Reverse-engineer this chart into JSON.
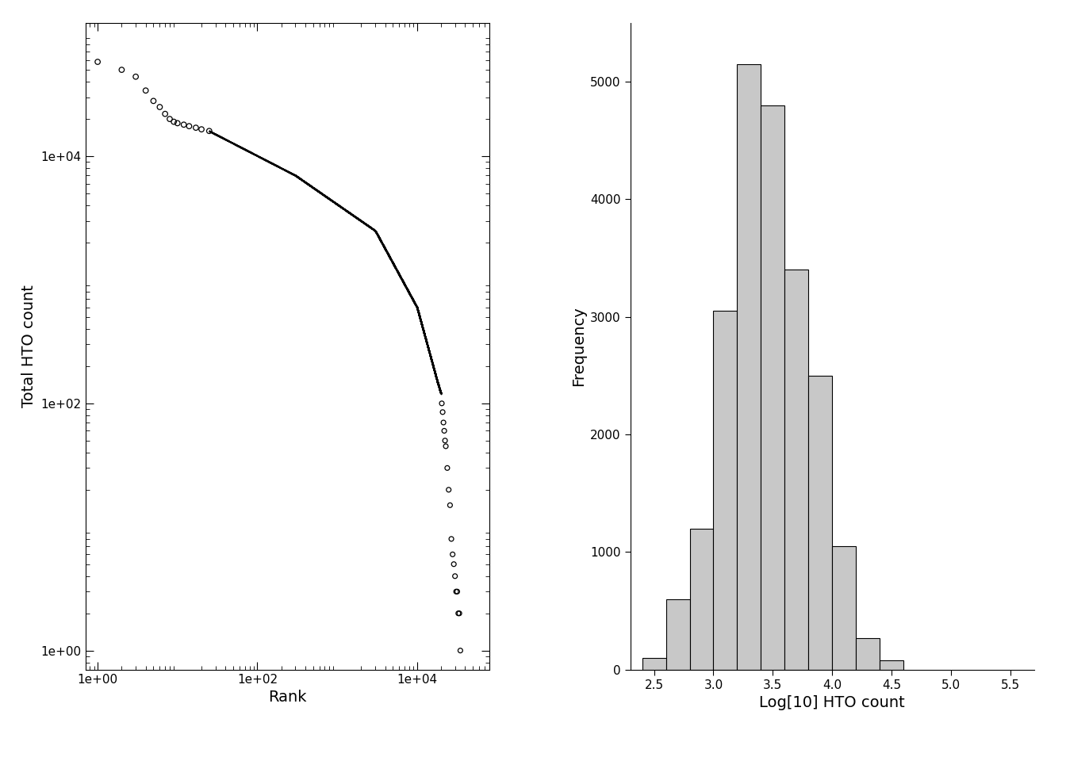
{
  "left_xlabel": "Rank",
  "left_ylabel": "Total HTO count",
  "right_xlabel": "Log[10] HTO count",
  "right_ylabel": "Frequency",
  "right_xlim": [
    2.3,
    5.7
  ],
  "right_ylim": [
    0,
    5500
  ],
  "right_yticks": [
    0,
    1000,
    2000,
    3000,
    4000,
    5000
  ],
  "right_xticks": [
    2.5,
    3.0,
    3.5,
    4.0,
    4.5,
    5.0,
    5.5
  ],
  "hist_bin_edges": [
    2.4,
    2.6,
    2.8,
    3.0,
    3.2,
    3.4,
    3.6,
    3.8,
    4.0,
    4.2,
    4.4,
    4.6
  ],
  "hist_counts": [
    100,
    600,
    1200,
    3050,
    5150,
    4800,
    3400,
    2500,
    1050,
    270,
    80
  ],
  "hist_color": "#c8c8c8",
  "hist_edgecolor": "#000000",
  "background_color": "#ffffff",
  "left_xlim": [
    0.7,
    80000
  ],
  "left_ylim": [
    0.7,
    120000
  ],
  "left_xtick_vals": [
    1,
    100,
    10000
  ],
  "left_xtick_labels": [
    "1e+00",
    "1e+02",
    "1e+04"
  ],
  "left_ytick_vals": [
    1,
    100,
    10000
  ],
  "left_ytick_labels": [
    "1e+00",
    "1e+02",
    "1e+04"
  ],
  "xlabel_fontsize": 14,
  "ylabel_fontsize": 14,
  "tick_fontsize": 11
}
